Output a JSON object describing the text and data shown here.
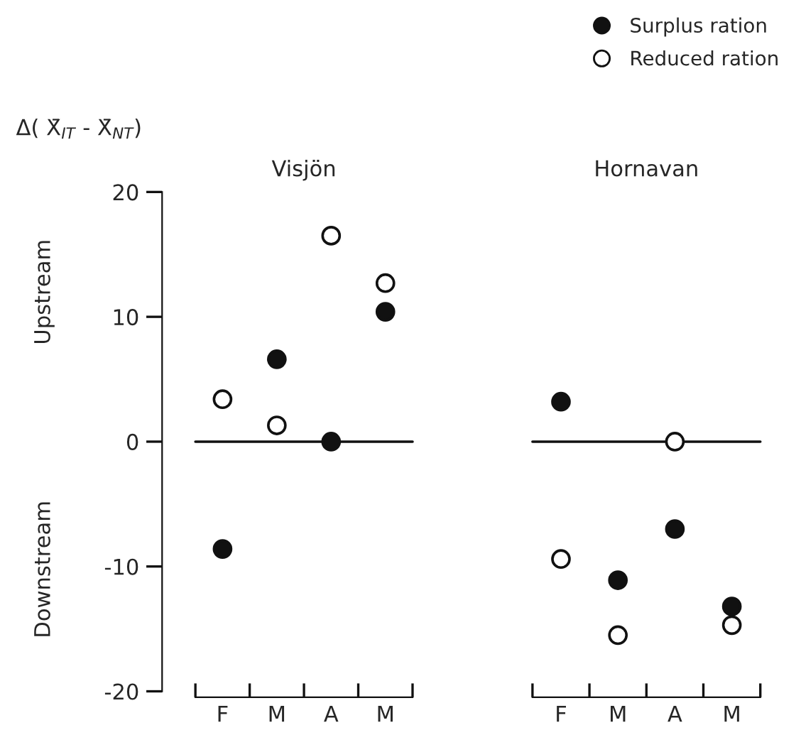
{
  "chart_data": [
    {
      "type": "scatter",
      "title": "Visjön",
      "ylabel": "Δ( X̄$_{IT}$ - X̄$_{NT}$)",
      "categories": [
        "F",
        "M",
        "A",
        "M"
      ],
      "series": [
        {
          "name": "Surplus ration",
          "color": "#111111",
          "values": [
            -8.6,
            6.6,
            0,
            10.4
          ]
        },
        {
          "name": "Reduced ration",
          "color": "#ffffff",
          "values": [
            3.4,
            1.3,
            16.5,
            12.7
          ]
        }
      ],
      "ylim": [
        -20,
        20
      ],
      "yticks": [
        -20,
        -10,
        0,
        10,
        20
      ],
      "marker": "circle",
      "legend": "top right",
      "ref_lines": [
        {
          "axis": "y",
          "value": 0
        }
      ],
      "annotations": [
        "Upstream",
        "Downstream"
      ]
    },
    {
      "type": "scatter",
      "title": "Hornavan",
      "categories": [
        "F",
        "M",
        "A",
        "M"
      ],
      "series": [
        {
          "color": "#111111",
          "values": [
            3.2,
            -11.1,
            -7.0,
            -13.2
          ]
        },
        {
          "color": "#ffffff",
          "values": [
            -9.4,
            -15.5,
            0,
            -14.7
          ]
        }
      ],
      "ylim": [
        -20,
        20
      ],
      "tick_labels": "x",
      "marker": "circle",
      "ref_lines": [
        {
          "axis": "y",
          "value": 0
        }
      ]
    }
  ]
}
